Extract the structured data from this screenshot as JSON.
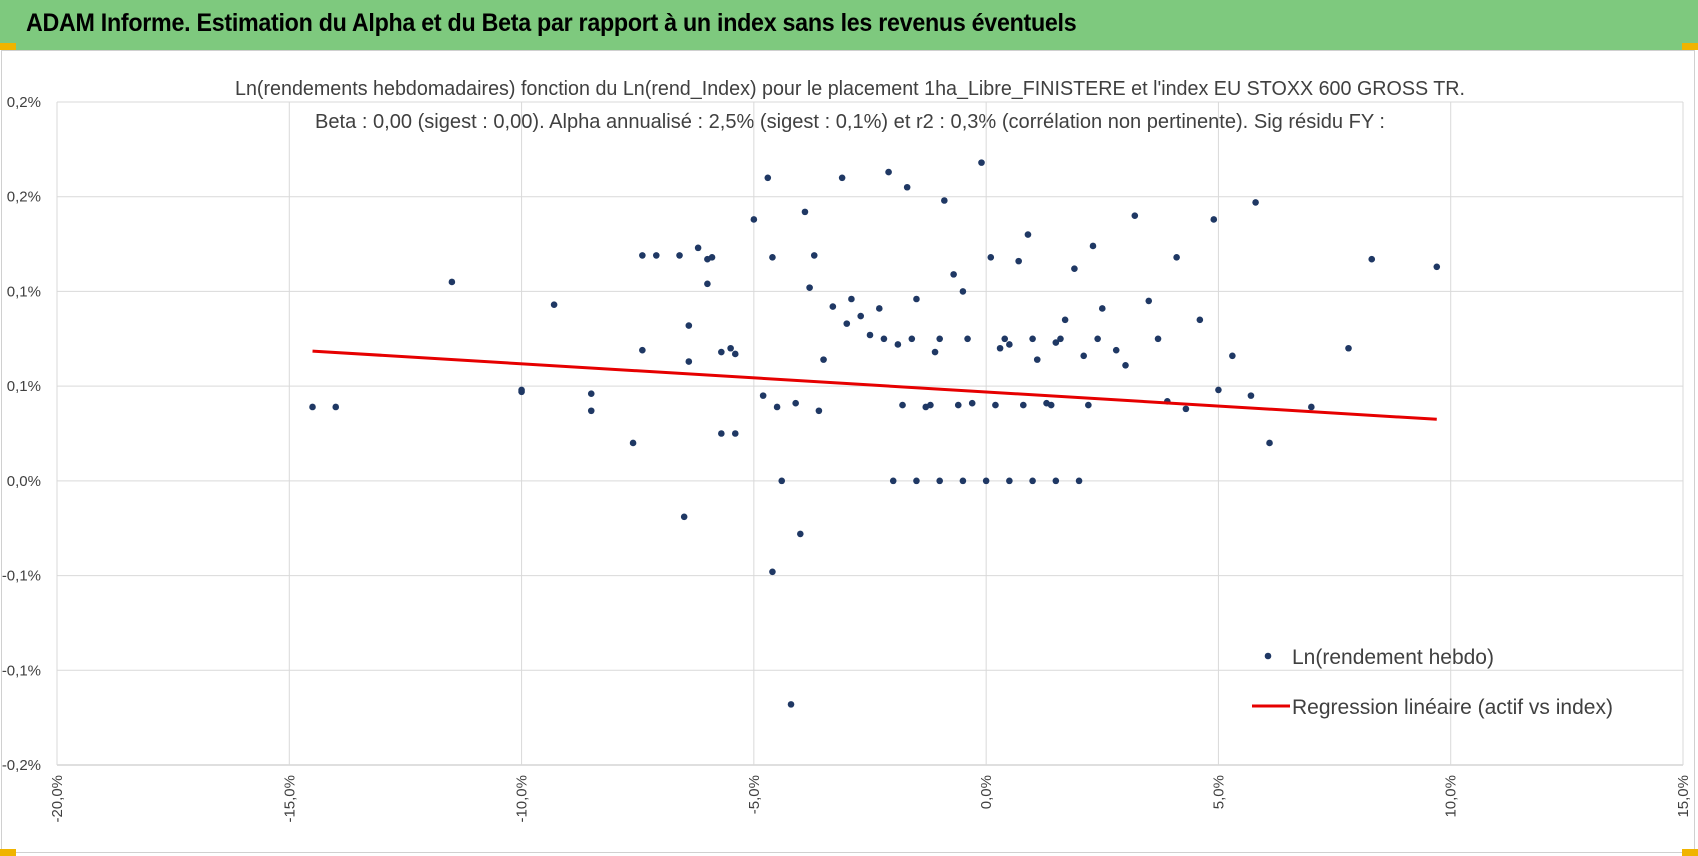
{
  "banner": {
    "title": "ADAM Informe. Estimation du Alpha et du Beta par rapport à un index sans les revenus éventuels"
  },
  "colors": {
    "banner": "#7ec97e",
    "accent_corner": "#f0b400",
    "points": "#1f3864",
    "regression": "#e60000",
    "grid": "#d9d9d9"
  },
  "chart_data": {
    "type": "scatter",
    "title_line1": "Ln(rendements hebdomadaires) fonction du Ln(rend_Index) pour le placement 1ha_Libre_FINISTERE et l'index EU STOXX 600 GROSS TR.",
    "title_line2": "Beta : 0,00 (sigest : 0,00).  Alpha annualisé : 2,5% (sigest : 0,1%) et r2 : 0,3% (corrélation non pertinente). Sig résidu FY :",
    "xlim": [
      -20,
      15
    ],
    "ylim": [
      -0.15,
      0.2
    ],
    "x_ticks": [
      -20,
      -15,
      -10,
      -5,
      0,
      5,
      10,
      15
    ],
    "x_tick_labels": [
      "-20,0%",
      "-15,0%",
      "-10,0%",
      "-5,0%",
      "0,0%",
      "5,0%",
      "10,0%",
      "15,0%"
    ],
    "y_ticks": [
      -0.15,
      -0.1,
      -0.05,
      0.0,
      0.05,
      0.1,
      0.15,
      0.2
    ],
    "y_tick_labels": [
      "-0,2%",
      "-0,1%",
      "-0,1%",
      "0,0%",
      "0,1%",
      "0,1%",
      "0,2%",
      "0,2%"
    ],
    "grid": true,
    "legend_position": "bottom-right",
    "legend": {
      "points": "Ln(rendement hebdo)",
      "line": "Regression linéaire (actif vs index)"
    },
    "regression": {
      "x": [
        -14.5,
        9.7
      ],
      "y": [
        0.0685,
        0.0325
      ]
    },
    "series_points": {
      "x": [
        -14.5,
        -14.0,
        -11.5,
        -10.0,
        -10.0,
        -9.3,
        -8.5,
        -8.5,
        -7.6,
        -7.4,
        -7.4,
        -7.1,
        -6.6,
        -6.5,
        -6.4,
        -6.4,
        -6.2,
        -6.0,
        -6.0,
        -5.9,
        -5.7,
        -5.7,
        -5.5,
        -5.4,
        -5.4,
        -5.0,
        -4.8,
        -4.7,
        -4.6,
        -4.6,
        -4.5,
        -4.4,
        -4.2,
        -4.1,
        -4.0,
        -3.9,
        -3.8,
        -3.7,
        -3.6,
        -3.5,
        -3.3,
        -3.1,
        -3.0,
        -2.9,
        -2.7,
        -2.5,
        -2.3,
        -2.1,
        -1.9,
        -1.7,
        -1.5,
        -1.3,
        -1.1,
        -0.9,
        -0.7,
        -0.5,
        -0.3,
        -0.1,
        0.1,
        0.3,
        0.5,
        0.7,
        0.9,
        1.1,
        1.3,
        1.5,
        1.7,
        1.9,
        2.1,
        2.3,
        2.5,
        2.8,
        3.0,
        3.2,
        3.5,
        3.7,
        3.9,
        4.1,
        4.3,
        4.6,
        4.9,
        5.0,
        5.3,
        5.7,
        5.8,
        6.1,
        7.0,
        7.8,
        8.3,
        9.7,
        -2.0,
        -1.5,
        -1.0,
        -0.5,
        0.0,
        0.5,
        1.0,
        1.5,
        2.0,
        -1.8,
        -1.2,
        -0.6,
        0.2,
        0.8,
        1.4,
        2.2,
        -2.2,
        -1.6,
        -1.0,
        -0.4,
        0.4,
        1.0,
        1.6,
        2.4
      ],
      "y": [
        0.039,
        0.039,
        0.105,
        0.047,
        0.048,
        0.093,
        0.046,
        0.037,
        0.02,
        0.069,
        0.119,
        0.119,
        0.119,
        -0.019,
        0.063,
        0.082,
        0.123,
        0.117,
        0.104,
        0.118,
        0.068,
        0.025,
        0.07,
        0.025,
        0.067,
        0.138,
        0.045,
        0.16,
        -0.048,
        0.118,
        0.039,
        0.0,
        -0.118,
        0.041,
        -0.028,
        0.142,
        0.102,
        0.119,
        0.037,
        0.064,
        0.092,
        0.16,
        0.083,
        0.096,
        0.087,
        0.077,
        0.091,
        0.163,
        0.072,
        0.155,
        0.096,
        0.039,
        0.068,
        0.148,
        0.109,
        0.1,
        0.041,
        0.168,
        0.118,
        0.07,
        0.072,
        0.116,
        0.13,
        0.064,
        0.041,
        0.073,
        0.085,
        0.112,
        0.066,
        0.124,
        0.091,
        0.069,
        0.061,
        0.14,
        0.095,
        0.075,
        0.042,
        0.118,
        0.038,
        0.085,
        0.138,
        0.048,
        0.066,
        0.045,
        0.147,
        0.02,
        0.039,
        0.07,
        0.117,
        0.113,
        0.0,
        0.0,
        0.0,
        0.0,
        0.0,
        0.0,
        0.0,
        0.0,
        0.0,
        0.04,
        0.04,
        0.04,
        0.04,
        0.04,
        0.04,
        0.04,
        0.075,
        0.075,
        0.075,
        0.075,
        0.075,
        0.075,
        0.075,
        0.075
      ]
    }
  }
}
